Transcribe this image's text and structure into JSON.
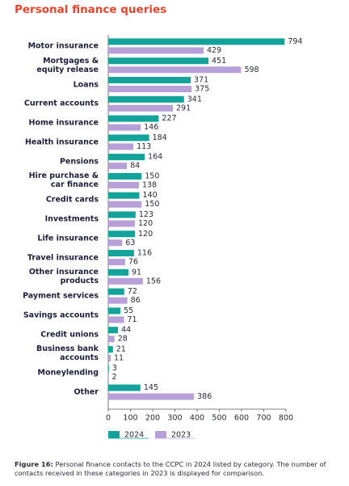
{
  "chart_data": {
    "type": "bar",
    "orientation": "horizontal",
    "title": "Personal finance queries",
    "categories": [
      "Motor insurance",
      "Mortgages &\nequity release",
      "Loans",
      "Current accounts",
      "Home insurance",
      "Health insurance",
      "Pensions",
      "Hire purchase &\ncar finance",
      "Credit cards",
      "Investments",
      "Life insurance",
      "Travel insurance",
      "Other insurance\nproducts",
      "Payment services",
      "Savings accounts",
      "Credit unions",
      "Business bank\naccounts",
      "Moneylending",
      "Other"
    ],
    "series": [
      {
        "name": "2024",
        "color": "#13a39b",
        "values": [
          794,
          451,
          371,
          341,
          227,
          184,
          164,
          150,
          140,
          123,
          120,
          116,
          91,
          72,
          55,
          44,
          21,
          3,
          145
        ]
      },
      {
        "name": "2023",
        "color": "#b7a0d8",
        "values": [
          429,
          598,
          375,
          291,
          146,
          113,
          84,
          138,
          150,
          120,
          63,
          76,
          156,
          86,
          71,
          28,
          11,
          2,
          386
        ]
      }
    ],
    "xlim": [
      0,
      800
    ],
    "xticks": [
      0,
      100,
      200,
      300,
      400,
      500,
      600,
      700,
      800
    ]
  },
  "caption": {
    "label": "Figure 16:",
    "text": "Personal finance contacts to the CCPC in 2024 listed by category. The number of contacts received in these categories in 2023 is displayed for comparison."
  }
}
